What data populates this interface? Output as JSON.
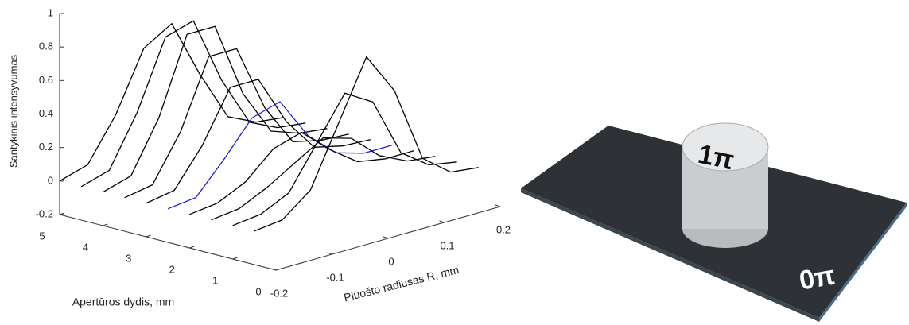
{
  "chart_data": {
    "type": "waterfall3d",
    "z_label": "Santykinis intensyvumas",
    "x_label": "Apertūros dydis, mm",
    "y_label": "Pluošto radiusas R, mm",
    "zlim": [
      -0.2,
      1
    ],
    "zticks": [
      -0.2,
      0,
      0.2,
      0.4,
      0.6,
      0.8,
      1
    ],
    "alim": [
      0,
      5
    ],
    "aticks": [
      0,
      1,
      2,
      3,
      4,
      5
    ],
    "rlim": [
      -0.2,
      0.2
    ],
    "rticks": [
      -0.2,
      -0.1,
      0,
      0.1,
      0.2
    ],
    "r": [
      -0.2,
      -0.15,
      -0.1,
      -0.05,
      0,
      0.05,
      0.1,
      0.15,
      0.2
    ],
    "series": [
      {
        "aperture": 5,
        "color": "#000000",
        "values": [
          0,
          0.05,
          0.3,
          0.65,
          0.75,
          0.4,
          0.1,
          0.02,
          0
        ]
      },
      {
        "aperture": 4.5,
        "color": "#000000",
        "values": [
          0,
          0.05,
          0.35,
          0.75,
          0.8,
          0.4,
          0.1,
          0.02,
          0
        ]
      },
      {
        "aperture": 4,
        "color": "#000000",
        "values": [
          0,
          0.05,
          0.35,
          0.8,
          0.8,
          0.35,
          0.08,
          0.02,
          0
        ]
      },
      {
        "aperture": 3.5,
        "color": "#000000",
        "values": [
          0,
          0.03,
          0.3,
          0.7,
          0.7,
          0.3,
          0.05,
          0.01,
          0
        ]
      },
      {
        "aperture": 3,
        "color": "#000000",
        "values": [
          0,
          0.03,
          0.25,
          0.55,
          0.55,
          0.25,
          0.05,
          0.01,
          0
        ]
      },
      {
        "aperture": 2.5,
        "color": "#1f1fd6",
        "values": [
          0,
          0.02,
          0.2,
          0.4,
          0.45,
          0.2,
          0.05,
          0,
          0
        ]
      },
      {
        "aperture": 2,
        "color": "#000000",
        "values": [
          0,
          0.02,
          0.1,
          0.25,
          0.3,
          0.15,
          0.03,
          0,
          0
        ]
      },
      {
        "aperture": 1.5,
        "color": "#000000",
        "values": [
          0,
          0.02,
          0.1,
          0.2,
          0.3,
          0.25,
          0.1,
          0.02,
          0
        ]
      },
      {
        "aperture": 1,
        "color": "#000000",
        "values": [
          0,
          0.02,
          0.1,
          0.35,
          0.6,
          0.5,
          0.15,
          0.03,
          0
        ]
      },
      {
        "aperture": 0.5,
        "color": "#000000",
        "values": [
          0,
          0.02,
          0.15,
          0.5,
          0.85,
          0.6,
          0.15,
          0.02,
          0
        ]
      }
    ]
  },
  "illustration": {
    "top_label": "1π",
    "base_label": "0π"
  }
}
